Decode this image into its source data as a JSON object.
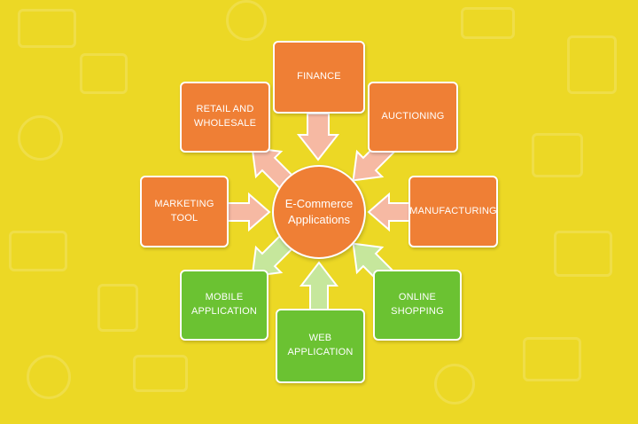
{
  "hub": {
    "line1": "E-Commerce",
    "line2": "Applications"
  },
  "nodes": {
    "finance": "FINANCE",
    "retail_line1": "RETAIL AND",
    "retail_line2": "WHOLESALE",
    "auctioning": "AUCTIONING",
    "marketing_tool": "MARKETING TOOL",
    "manufacturing": "MANUFACTURING",
    "mobile_line1": "MOBILE",
    "mobile_line2": "APPLICATION",
    "online_line1": "ONLINE",
    "online_line2": "SHOPPING",
    "web_line1": "WEB",
    "web_line2": "APPLICATION"
  },
  "colors": {
    "background": "#ecd825",
    "orange_box": "#ef7f35",
    "green_box": "#6bc232",
    "orange_arrow": "#f6b9a3",
    "green_arrow": "#c6e79c"
  }
}
